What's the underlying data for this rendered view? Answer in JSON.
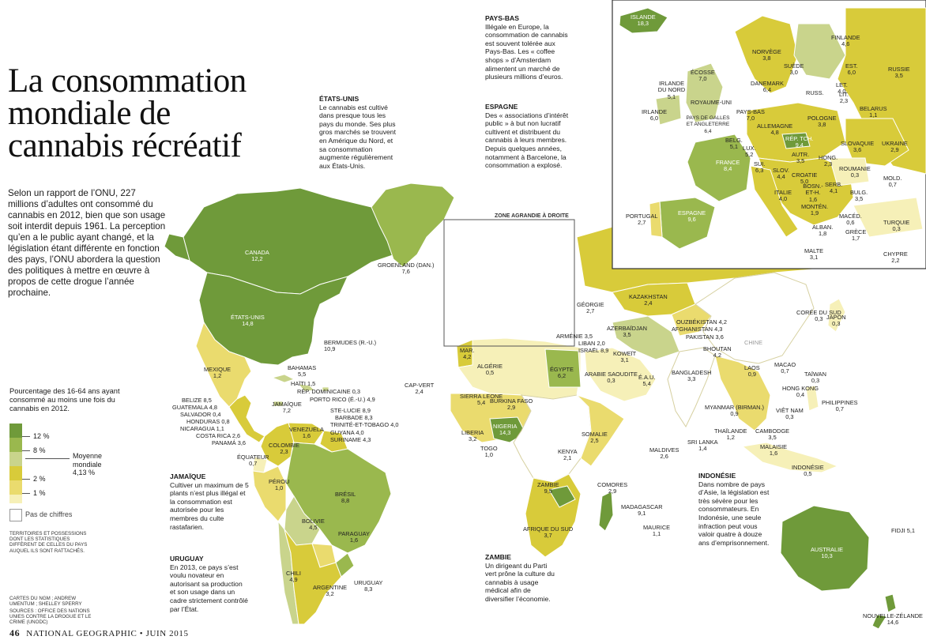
{
  "title": "La consommation mondiale de cannabis récréatif",
  "intro": "Selon un rapport de l’ONU, 227 millions d’adultes ont consommé du cannabis en 2012, bien que son usage soit interdit depuis 1961. La perception qu’en a le public ayant changé, et la législation étant différente en fonction des pays, l’ONU abordera la question des politiques à mettre en œuvre à propos de cette drogue l’année prochaine.",
  "notes": {
    "etats_unis": {
      "title": "ÉTATS-UNIS",
      "text": "Le cannabis est cultivé dans presque tous les pays du monde. Ses plus gros marchés se trouvent en Amérique du Nord, et sa consommation augmente régulièrement aux États-Unis."
    },
    "pays_bas": {
      "title": "PAYS-BAS",
      "text": "Illégale en Europe, la consommation de cannabis est souvent tolérée aux Pays-Bas. Les « coffee shops » d’Amsterdam alimentent un marché de plusieurs millions d’euros."
    },
    "espagne": {
      "title": "ESPAGNE",
      "text": "Des « associations d’intérêt public » à but non lucratif cultivent et distribuent du cannabis à leurs membres. Depuis quelques années, notamment à Barcelone, la consommation a explosé."
    },
    "jamaique": {
      "title": "JAMAÏQUE",
      "text": "Cultiver un maximum de 5 plants n’est plus illégal et la consommation est autorisée pour les membres du culte rastafarien."
    },
    "uruguay": {
      "title": "URUGUAY",
      "text": "En 2013, ce pays s’est voulu novateur en autorisant sa production et son usage dans un cadre strictement contrôlé par l’État."
    },
    "zambie": {
      "title": "ZAMBIE",
      "text": "Un dirigeant du Parti vert prône la culture du cannabis à usage médical afin de diversifier l’économie."
    },
    "indonesie": {
      "title": "INDONÉSIE",
      "text": "Dans nombre de pays d’Asie, la législation est très sévère pour les consommateurs. En Indonésie, une seule infraction peut vous valoir quatre à douze ans d’emprisonnement."
    }
  },
  "legend": {
    "title": "Pourcentage des 16-64 ans ayant consommé au moins une fois du cannabis en 2012.",
    "breaks": [
      "12 %",
      "8 %",
      "2 %",
      "1 %"
    ],
    "average_label": "Moyenne mondiale",
    "average_value": "4,13 %",
    "no_data": "Pas de chiffres",
    "colors": [
      "#6f9a3a",
      "#9ab84e",
      "#c9d48c",
      "#d8cb3a",
      "#eadb6e",
      "#f6f0b8"
    ],
    "no_data_color": "#ffffff"
  },
  "territories_note": "TERRITOIRES ET POSSESSIONS DONT LES STATISTIQUES DIFFÈRENT DE CELLES DU PAYS AUQUEL ILS SONT RATTACHÉS.",
  "credits": "CARTES DU NGM ; ANDREW UMENTUM ; SHELLEY SPERRY",
  "sources": "SOURCES : OFFICE DES NATIONS UNIES CONTRE LA DROGUE ET LE CRIME (UNODC)",
  "zone_label": "ZONE AGRANDIE À DROITE",
  "footer": {
    "page": "46",
    "text": "NATIONAL GEOGRAPHIC • JUIN 2015"
  },
  "world": [
    {
      "name": "CANADA",
      "value": "12,2"
    },
    {
      "name": "ÉTATS-UNIS",
      "value": "14,8"
    },
    {
      "name": "GROENLAND (DAN.)",
      "value": "7,6"
    },
    {
      "name": "BERMUDES (R.-U.)",
      "value": "10,9"
    },
    {
      "name": "MEXIQUE",
      "value": "1,2"
    },
    {
      "name": "BAHAMAS",
      "value": "5,5"
    },
    {
      "name": "HAÏTI",
      "value": "1,5"
    },
    {
      "name": "RÉP. DOMINICAINE",
      "value": "0,3"
    },
    {
      "name": "PORTO RICO (É.-U.)",
      "value": "4,9"
    },
    {
      "name": "JAMAÏQUE",
      "value": "7,2"
    },
    {
      "name": "STE-LUCIE",
      "value": "8,9"
    },
    {
      "name": "BARBADE",
      "value": "8,3"
    },
    {
      "name": "TRINITÉ-ET-TOBAGO",
      "value": "4,0"
    },
    {
      "name": "BELIZE",
      "value": "8,5"
    },
    {
      "name": "GUATEMALA",
      "value": "4,8"
    },
    {
      "name": "SALVADOR",
      "value": "0,4"
    },
    {
      "name": "HONDURAS",
      "value": "0,8"
    },
    {
      "name": "NICARAGUA",
      "value": "1,1"
    },
    {
      "name": "COSTA RICA",
      "value": "2,6"
    },
    {
      "name": "PANAMÁ",
      "value": "3,6"
    },
    {
      "name": "GUYANA",
      "value": "4,0"
    },
    {
      "name": "SURINAME",
      "value": "4,3"
    },
    {
      "name": "VENEZUELA",
      "value": "1,6"
    },
    {
      "name": "COLOMBIE",
      "value": "2,3"
    },
    {
      "name": "ÉQUATEUR",
      "value": "0,7"
    },
    {
      "name": "PÉROU",
      "value": "1,0"
    },
    {
      "name": "BRÉSIL",
      "value": "8,8"
    },
    {
      "name": "BOLIVIE",
      "value": "4,5"
    },
    {
      "name": "PARAGUAY",
      "value": "1,6"
    },
    {
      "name": "CHILI",
      "value": "4,9"
    },
    {
      "name": "ARGENTINE",
      "value": "3,2"
    },
    {
      "name": "URUGUAY",
      "value": "8,3"
    },
    {
      "name": "CAP-VERT",
      "value": "2,4"
    },
    {
      "name": "MAR.",
      "value": "4,2"
    },
    {
      "name": "ALGÉRIE",
      "value": "0,5"
    },
    {
      "name": "ÉGYPTE",
      "value": "6,2"
    },
    {
      "name": "SIERRA LEONE",
      "value": "5,4"
    },
    {
      "name": "BURKINA FASO",
      "value": "2,9"
    },
    {
      "name": "LIBERIA",
      "value": "3,2"
    },
    {
      "name": "NIGERIA",
      "value": "14,3"
    },
    {
      "name": "TOGO",
      "value": "1,0"
    },
    {
      "name": "SOMALIE",
      "value": "2,5"
    },
    {
      "name": "KENYA",
      "value": "2,1"
    },
    {
      "name": "ZAMBIE",
      "value": "9,5"
    },
    {
      "name": "COMORES",
      "value": "2,9"
    },
    {
      "name": "MADAGASCAR",
      "value": "9,1"
    },
    {
      "name": "MAURICE",
      "value": "1,1"
    },
    {
      "name": "AFRIQUE DU SUD",
      "value": "3,7"
    },
    {
      "name": "GÉORGIE",
      "value": "2,7"
    },
    {
      "name": "ARMÉNIE",
      "value": "3,5"
    },
    {
      "name": "AZERBAÏDJAN",
      "value": "3,5"
    },
    {
      "name": "LIBAN",
      "value": "2,0"
    },
    {
      "name": "ISRAËL",
      "value": "8,9"
    },
    {
      "name": "KOWEÏT",
      "value": "3,1"
    },
    {
      "name": "ARABIE SAOUDITE",
      "value": "0,3"
    },
    {
      "name": "É.A.U.",
      "value": "5,4"
    },
    {
      "name": "KAZAKHSTAN",
      "value": "2,4"
    },
    {
      "name": "OUZBÉKISTAN",
      "value": "4,2"
    },
    {
      "name": "AFGHANISTAN",
      "value": "4,3"
    },
    {
      "name": "PAKISTAN",
      "value": "3,6"
    },
    {
      "name": "BHOUTAN",
      "value": "4,2"
    },
    {
      "name": "BANGLADESH",
      "value": "3,3"
    },
    {
      "name": "SRI LANKA",
      "value": "1,4"
    },
    {
      "name": "MALDIVES",
      "value": "2,6"
    },
    {
      "name": "MYANMAR (BIRMAN.)",
      "value": "0,9"
    },
    {
      "name": "THAÏLANDE",
      "value": "1,2"
    },
    {
      "name": "LAOS",
      "value": "0,9"
    },
    {
      "name": "CAMBODGE",
      "value": "3,5"
    },
    {
      "name": "VIÊT NAM",
      "value": "0,3"
    },
    {
      "name": "MALAISIE",
      "value": "1,6"
    },
    {
      "name": "INDONÉSIE",
      "value": "0,5"
    },
    {
      "name": "PHILIPPINES",
      "value": "0,7"
    },
    {
      "name": "MACAO",
      "value": "0,7"
    },
    {
      "name": "HONG KONG",
      "value": "0,4"
    },
    {
      "name": "TAÏWAN",
      "value": "0,3"
    },
    {
      "name": "CORÉE DU SUD",
      "value": "0,3"
    },
    {
      "name": "JAPON",
      "value": "0,3"
    },
    {
      "name": "CHINE",
      "value": ""
    },
    {
      "name": "AUSTRALIE",
      "value": "10,3"
    },
    {
      "name": "NOUVELLE-ZÉLANDE",
      "value": "14,6"
    },
    {
      "name": "FIDJI",
      "value": "5,1"
    }
  ],
  "europe": [
    {
      "name": "ISLANDE",
      "value": "18,3"
    },
    {
      "name": "NORVÈGE",
      "value": "3,8"
    },
    {
      "name": "SUÈDE",
      "value": "3,0"
    },
    {
      "name": "FINLANDE",
      "value": "4,6"
    },
    {
      "name": "RUSSIE",
      "value": "3,5"
    },
    {
      "name": "EST.",
      "value": "6,0"
    },
    {
      "name": "LET.",
      "value": "4,0"
    },
    {
      "name": "LIT.",
      "value": "2,3"
    },
    {
      "name": "RUSS.",
      "value": ""
    },
    {
      "name": "BELARUS",
      "value": "1,1"
    },
    {
      "name": "ÉCOSSE",
      "value": "7,0"
    },
    {
      "name": "DANEMARK",
      "value": "6,4"
    },
    {
      "name": "IRLANDE DU NORD",
      "value": "5,1"
    },
    {
      "name": "IRLANDE",
      "value": "6,0"
    },
    {
      "name": "ROYAUME-UNI",
      "value": ""
    },
    {
      "name": "PAYS DE GALLES ET ANGLETERRE",
      "value": "6,4"
    },
    {
      "name": "PAYS-BAS",
      "value": "7,0"
    },
    {
      "name": "ALLEMAGNE",
      "value": "4,8"
    },
    {
      "name": "POLOGNE",
      "value": "3,8"
    },
    {
      "name": "BELG.",
      "value": "5,1"
    },
    {
      "name": "LUX.",
      "value": "5,2"
    },
    {
      "name": "RÉP. TCH.",
      "value": "9,4"
    },
    {
      "name": "SLOVAQUIE",
      "value": "3,6"
    },
    {
      "name": "UKRAINE",
      "value": "2,9"
    },
    {
      "name": "FRANCE",
      "value": "8,4"
    },
    {
      "name": "SUI.",
      "value": "6,3"
    },
    {
      "name": "AUTR.",
      "value": "3,5"
    },
    {
      "name": "HONG.",
      "value": "2,3"
    },
    {
      "name": "SLOV.",
      "value": "4,4"
    },
    {
      "name": "CROATIE",
      "value": "5,0"
    },
    {
      "name": "ROUMANIE",
      "value": "0,3"
    },
    {
      "name": "MOLD.",
      "value": "0,7"
    },
    {
      "name": "BOSN.-ET-H.",
      "value": "1,6"
    },
    {
      "name": "SERB.",
      "value": "4,1"
    },
    {
      "name": "BULG.",
      "value": "3,5"
    },
    {
      "name": "ITALIE",
      "value": "4,0"
    },
    {
      "name": "MONTÉN.",
      "value": "1,9"
    },
    {
      "name": "MACÉD.",
      "value": "0,6"
    },
    {
      "name": "ALBAN.",
      "value": "1,8"
    },
    {
      "name": "GRÈCE",
      "value": "1,7"
    },
    {
      "name": "TURQUIE",
      "value": "0,3"
    },
    {
      "name": "PORTUGAL",
      "value": "2,7"
    },
    {
      "name": "ESPAGNE",
      "value": "9,6"
    },
    {
      "name": "MALTE",
      "value": "3,1"
    },
    {
      "name": "CHYPRE",
      "value": "2,2"
    }
  ]
}
